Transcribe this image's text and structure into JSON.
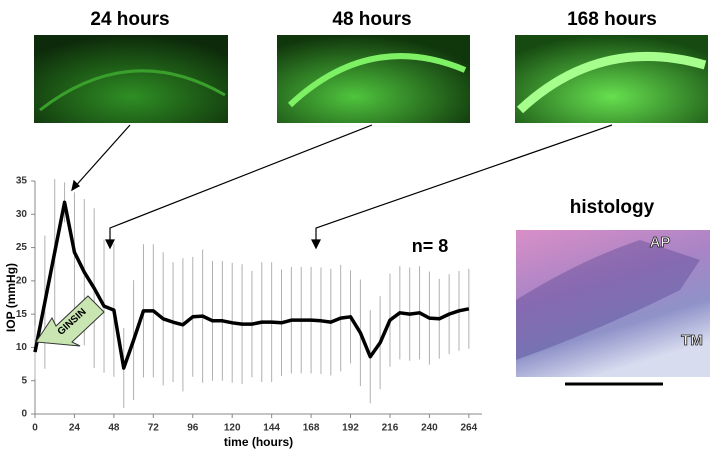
{
  "panels": [
    {
      "label": "24 hours"
    },
    {
      "label": "48 hours"
    },
    {
      "label": "168 hours"
    }
  ],
  "histology": {
    "title": "histology",
    "labels": [
      "AP",
      "TM"
    ]
  },
  "chart_data": {
    "type": "line",
    "x_label": "time (hours)",
    "y_label": "IOP (mmHg)",
    "annotations": [
      "n= 8",
      "GINSIN"
    ],
    "x": [
      0,
      6,
      12,
      18,
      24,
      30,
      36,
      42,
      48,
      54,
      60,
      66,
      72,
      78,
      84,
      90,
      96,
      102,
      108,
      114,
      120,
      126,
      132,
      138,
      144,
      150,
      156,
      162,
      168,
      174,
      180,
      186,
      192,
      198,
      204,
      210,
      216,
      222,
      228,
      234,
      240,
      246,
      252,
      258,
      264
    ],
    "series": [
      {
        "color": "#000000",
        "values": [
          9.3,
          16.8,
          24.3,
          31.8,
          24.3,
          21.3,
          18.9,
          16.2,
          15.6,
          6.9,
          11.1,
          15.5,
          15.5,
          14.3,
          13.8,
          13.4,
          14.6,
          14.7,
          14.0,
          14.0,
          13.7,
          13.5,
          13.5,
          13.8,
          13.8,
          13.7,
          14.1,
          14.1,
          14.1,
          14.0,
          13.8,
          14.4,
          14.6,
          12.2,
          8.6,
          10.7,
          14.1,
          15.2,
          15.0,
          15.2,
          14.4,
          14.3,
          15.0,
          15.5,
          15.8
        ],
        "errors": [
          4,
          10,
          11,
          3,
          9,
          11,
          12,
          10,
          10,
          6,
          9,
          10,
          10,
          10,
          9,
          10,
          9,
          10,
          9,
          9,
          9,
          9,
          8,
          9,
          9,
          8,
          8,
          8,
          8,
          8,
          8,
          8,
          7,
          8,
          7,
          7,
          7,
          7,
          7,
          7,
          7,
          6,
          6,
          6,
          6
        ]
      }
    ],
    "xlim": [
      0,
      272
    ],
    "ylim": [
      0,
      35
    ],
    "xticks": [
      0,
      24,
      48,
      72,
      96,
      120,
      144,
      168,
      192,
      216,
      240,
      264
    ],
    "yticks": [
      0,
      5,
      10,
      15,
      20,
      25,
      30,
      35
    ],
    "errorbar_color": "#b0b0b0"
  }
}
